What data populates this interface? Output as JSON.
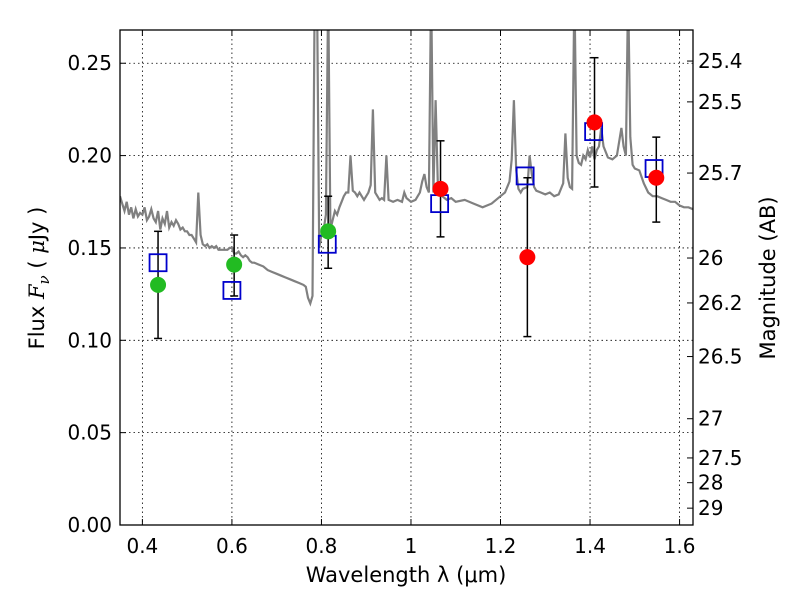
{
  "chart_data": {
    "type": "scatter",
    "title": "",
    "xlabel": "Wavelength  λ (μm)",
    "ylabel_parts": {
      "pre": "Flux  ",
      "sym": "F",
      "sub": "ν",
      "mid": "  ( ",
      "mu": "μ",
      "post": "Jy )"
    },
    "y2label": "Magnitude (AB)",
    "xlim": [
      0.35,
      1.63
    ],
    "ylim": [
      0.0,
      0.268
    ],
    "grid": true,
    "x_ticks": [
      0.4,
      0.6,
      0.8,
      1.0,
      1.2,
      1.4,
      1.6
    ],
    "x_tick_labels": [
      "0.4",
      "0.6",
      "0.8",
      "1",
      "1.2",
      "1.4",
      "1.6"
    ],
    "y_ticks": [
      0.0,
      0.05,
      0.1,
      0.15,
      0.2,
      0.25
    ],
    "y_tick_labels": [
      "0.00",
      "0.05",
      "0.10",
      "0.15",
      "0.20",
      "0.25"
    ],
    "mag_ticks": [
      "25.4",
      "25.5",
      "25.7",
      "26",
      "26.2",
      "26.5",
      "27",
      "27.5",
      "28",
      "29"
    ],
    "colors": {
      "spectrum": "#808080",
      "model_box": "#0000cc",
      "green": "#22bb22",
      "red": "#ff0000",
      "error": "#000000"
    },
    "spectrum": [
      [
        0.35,
        0.178
      ],
      [
        0.355,
        0.174
      ],
      [
        0.36,
        0.17
      ],
      [
        0.365,
        0.175
      ],
      [
        0.37,
        0.168
      ],
      [
        0.375,
        0.172
      ],
      [
        0.38,
        0.166
      ],
      [
        0.385,
        0.171
      ],
      [
        0.39,
        0.167
      ],
      [
        0.395,
        0.169
      ],
      [
        0.4,
        0.168
      ],
      [
        0.405,
        0.172
      ],
      [
        0.41,
        0.165
      ],
      [
        0.415,
        0.167
      ],
      [
        0.42,
        0.171
      ],
      [
        0.425,
        0.166
      ],
      [
        0.43,
        0.164
      ],
      [
        0.435,
        0.17
      ],
      [
        0.44,
        0.16
      ],
      [
        0.445,
        0.166
      ],
      [
        0.45,
        0.163
      ],
      [
        0.455,
        0.17
      ],
      [
        0.46,
        0.161
      ],
      [
        0.465,
        0.164
      ],
      [
        0.47,
        0.162
      ],
      [
        0.475,
        0.165
      ],
      [
        0.48,
        0.163
      ],
      [
        0.485,
        0.16
      ],
      [
        0.49,
        0.161
      ],
      [
        0.495,
        0.159
      ],
      [
        0.5,
        0.159
      ],
      [
        0.505,
        0.157
      ],
      [
        0.51,
        0.157
      ],
      [
        0.515,
        0.155
      ],
      [
        0.52,
        0.153
      ],
      [
        0.525,
        0.18
      ],
      [
        0.53,
        0.157
      ],
      [
        0.535,
        0.152
      ],
      [
        0.54,
        0.151
      ],
      [
        0.545,
        0.152
      ],
      [
        0.55,
        0.15
      ],
      [
        0.555,
        0.151
      ],
      [
        0.56,
        0.15
      ],
      [
        0.565,
        0.151
      ],
      [
        0.57,
        0.149
      ],
      [
        0.575,
        0.149
      ],
      [
        0.58,
        0.149
      ],
      [
        0.585,
        0.149
      ],
      [
        0.59,
        0.149
      ],
      [
        0.595,
        0.15
      ],
      [
        0.6,
        0.15
      ],
      [
        0.605,
        0.147
      ],
      [
        0.61,
        0.147
      ],
      [
        0.615,
        0.148
      ],
      [
        0.62,
        0.146
      ],
      [
        0.625,
        0.145
      ],
      [
        0.63,
        0.146
      ],
      [
        0.635,
        0.145
      ],
      [
        0.64,
        0.143
      ],
      [
        0.645,
        0.142
      ],
      [
        0.65,
        0.142
      ],
      [
        0.66,
        0.141
      ],
      [
        0.67,
        0.14
      ],
      [
        0.68,
        0.138
      ],
      [
        0.69,
        0.137
      ],
      [
        0.7,
        0.136
      ],
      [
        0.71,
        0.135
      ],
      [
        0.72,
        0.134
      ],
      [
        0.73,
        0.133
      ],
      [
        0.74,
        0.132
      ],
      [
        0.75,
        0.131
      ],
      [
        0.76,
        0.13
      ],
      [
        0.765,
        0.129
      ],
      [
        0.77,
        0.123
      ],
      [
        0.775,
        0.12
      ],
      [
        0.78,
        0.124
      ],
      [
        0.785,
        0.29
      ],
      [
        0.79,
        0.29
      ],
      [
        0.795,
        0.15
      ],
      [
        0.8,
        0.157
      ],
      [
        0.805,
        0.16
      ],
      [
        0.81,
        0.168
      ],
      [
        0.815,
        0.29
      ],
      [
        0.82,
        0.16
      ],
      [
        0.825,
        0.165
      ],
      [
        0.83,
        0.17
      ],
      [
        0.835,
        0.168
      ],
      [
        0.84,
        0.172
      ],
      [
        0.845,
        0.175
      ],
      [
        0.85,
        0.178
      ],
      [
        0.855,
        0.18
      ],
      [
        0.86,
        0.18
      ],
      [
        0.865,
        0.2
      ],
      [
        0.87,
        0.181
      ],
      [
        0.875,
        0.18
      ],
      [
        0.88,
        0.178
      ],
      [
        0.885,
        0.18
      ],
      [
        0.89,
        0.178
      ],
      [
        0.895,
        0.176
      ],
      [
        0.9,
        0.178
      ],
      [
        0.905,
        0.18
      ],
      [
        0.91,
        0.184
      ],
      [
        0.915,
        0.225
      ],
      [
        0.92,
        0.18
      ],
      [
        0.925,
        0.178
      ],
      [
        0.93,
        0.176
      ],
      [
        0.935,
        0.177
      ],
      [
        0.94,
        0.176
      ],
      [
        0.945,
        0.2
      ],
      [
        0.95,
        0.176
      ],
      [
        0.96,
        0.175
      ],
      [
        0.97,
        0.176
      ],
      [
        0.98,
        0.175
      ],
      [
        0.985,
        0.18
      ],
      [
        0.99,
        0.177
      ],
      [
        1.0,
        0.175
      ],
      [
        1.01,
        0.176
      ],
      [
        1.015,
        0.178
      ],
      [
        1.02,
        0.18
      ],
      [
        1.025,
        0.186
      ],
      [
        1.03,
        0.19
      ],
      [
        1.035,
        0.183
      ],
      [
        1.04,
        0.18
      ],
      [
        1.045,
        0.292
      ],
      [
        1.05,
        0.18
      ],
      [
        1.055,
        0.23
      ],
      [
        1.06,
        0.185
      ],
      [
        1.065,
        0.182
      ],
      [
        1.07,
        0.178
      ],
      [
        1.08,
        0.176
      ],
      [
        1.09,
        0.177
      ],
      [
        1.1,
        0.175
      ],
      [
        1.12,
        0.176
      ],
      [
        1.14,
        0.174
      ],
      [
        1.16,
        0.172
      ],
      [
        1.18,
        0.174
      ],
      [
        1.2,
        0.178
      ],
      [
        1.21,
        0.18
      ],
      [
        1.22,
        0.186
      ],
      [
        1.225,
        0.198
      ],
      [
        1.23,
        0.23
      ],
      [
        1.235,
        0.192
      ],
      [
        1.24,
        0.182
      ],
      [
        1.245,
        0.18
      ],
      [
        1.25,
        0.182
      ],
      [
        1.26,
        0.183
      ],
      [
        1.265,
        0.2
      ],
      [
        1.27,
        0.19
      ],
      [
        1.275,
        0.183
      ],
      [
        1.28,
        0.181
      ],
      [
        1.29,
        0.18
      ],
      [
        1.3,
        0.179
      ],
      [
        1.31,
        0.18
      ],
      [
        1.32,
        0.178
      ],
      [
        1.33,
        0.179
      ],
      [
        1.34,
        0.185
      ],
      [
        1.345,
        0.212
      ],
      [
        1.35,
        0.188
      ],
      [
        1.355,
        0.183
      ],
      [
        1.36,
        0.182
      ],
      [
        1.365,
        0.29
      ],
      [
        1.37,
        0.2
      ],
      [
        1.375,
        0.196
      ],
      [
        1.38,
        0.195
      ],
      [
        1.385,
        0.2
      ],
      [
        1.39,
        0.198
      ],
      [
        1.395,
        0.203
      ],
      [
        1.4,
        0.199
      ],
      [
        1.405,
        0.205
      ],
      [
        1.41,
        0.198
      ],
      [
        1.415,
        0.203
      ],
      [
        1.42,
        0.205
      ],
      [
        1.425,
        0.215
      ],
      [
        1.43,
        0.205
      ],
      [
        1.44,
        0.199
      ],
      [
        1.45,
        0.198
      ],
      [
        1.46,
        0.2
      ],
      [
        1.47,
        0.215
      ],
      [
        1.475,
        0.205
      ],
      [
        1.48,
        0.2
      ],
      [
        1.485,
        0.29
      ],
      [
        1.49,
        0.21
      ],
      [
        1.495,
        0.195
      ],
      [
        1.5,
        0.193
      ],
      [
        1.51,
        0.192
      ],
      [
        1.52,
        0.185
      ],
      [
        1.53,
        0.18
      ],
      [
        1.54,
        0.178
      ],
      [
        1.55,
        0.178
      ],
      [
        1.56,
        0.177
      ],
      [
        1.57,
        0.176
      ],
      [
        1.58,
        0.175
      ],
      [
        1.59,
        0.175
      ],
      [
        1.6,
        0.173
      ],
      [
        1.61,
        0.172
      ],
      [
        1.62,
        0.172
      ],
      [
        1.63,
        0.171
      ]
    ],
    "models": [
      {
        "x": 0.435,
        "y": 0.142
      },
      {
        "x": 0.6,
        "y": 0.127
      },
      {
        "x": 0.813,
        "y": 0.152
      },
      {
        "x": 1.064,
        "y": 0.174
      },
      {
        "x": 1.255,
        "y": 0.189
      },
      {
        "x": 1.408,
        "y": 0.213
      },
      {
        "x": 1.543,
        "y": 0.193
      }
    ],
    "photometry": [
      {
        "x": 0.435,
        "y": 0.13,
        "lo": 0.101,
        "hi": 0.159,
        "color": "green"
      },
      {
        "x": 0.605,
        "y": 0.141,
        "lo": 0.124,
        "hi": 0.157,
        "color": "green"
      },
      {
        "x": 0.815,
        "y": 0.159,
        "lo": 0.139,
        "hi": 0.178,
        "color": "green"
      },
      {
        "x": 1.066,
        "y": 0.182,
        "lo": 0.156,
        "hi": 0.208,
        "color": "red"
      },
      {
        "x": 1.26,
        "y": 0.145,
        "lo": 0.102,
        "hi": 0.188,
        "color": "red"
      },
      {
        "x": 1.41,
        "y": 0.218,
        "lo": 0.183,
        "hi": 0.253,
        "color": "red"
      },
      {
        "x": 1.548,
        "y": 0.188,
        "lo": 0.164,
        "hi": 0.21,
        "color": "red"
      }
    ]
  }
}
